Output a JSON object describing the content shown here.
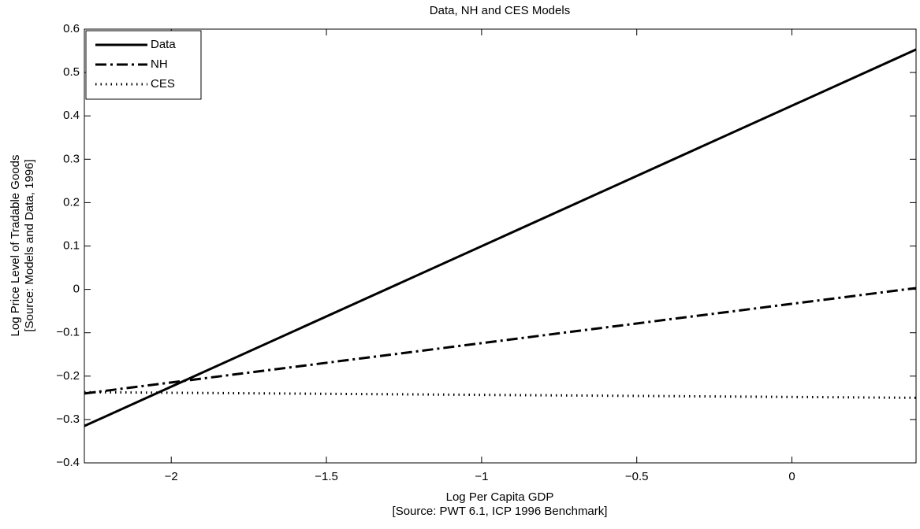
{
  "chart_data": {
    "type": "line",
    "title": "Data, NH and CES Models",
    "xlabel": [
      "Log Per Capita GDP",
      "[Source: PWT 6.1, ICP 1996 Benchmark]"
    ],
    "ylabel": [
      "Log Price Level of Tradable Goods",
      "[Source: Models and Data, 1996]"
    ],
    "x": [
      -2.28,
      0.4
    ],
    "series": [
      {
        "name": "Data",
        "color": "#000000",
        "dash": "solid",
        "values": [
          -0.315,
          0.553
        ]
      },
      {
        "name": "NH",
        "color": "#000000",
        "dash": "dashdot",
        "values": [
          -0.24,
          0.003
        ]
      },
      {
        "name": "CES",
        "color": "#000000",
        "dash": "dotted",
        "values": [
          -0.237,
          -0.25
        ]
      }
    ],
    "xlim": [
      -2.28,
      0.4
    ],
    "ylim": [
      -0.4,
      0.6
    ],
    "xticks": [
      {
        "value": -2,
        "label": "−2"
      },
      {
        "value": -1.5,
        "label": "−1.5"
      },
      {
        "value": -1,
        "label": "−1"
      },
      {
        "value": -0.5,
        "label": "−0.5"
      },
      0
    ],
    "yticks": [
      {
        "value": -0.4,
        "label": "−0.4"
      },
      {
        "value": -0.3,
        "label": "−0.3"
      },
      {
        "value": -0.2,
        "label": "−0.2"
      },
      {
        "value": -0.1,
        "label": "−0.1"
      },
      0,
      0.1,
      0.2,
      0.3,
      0.4,
      0.5,
      0.6
    ],
    "legend": "upper left",
    "grid": false
  }
}
